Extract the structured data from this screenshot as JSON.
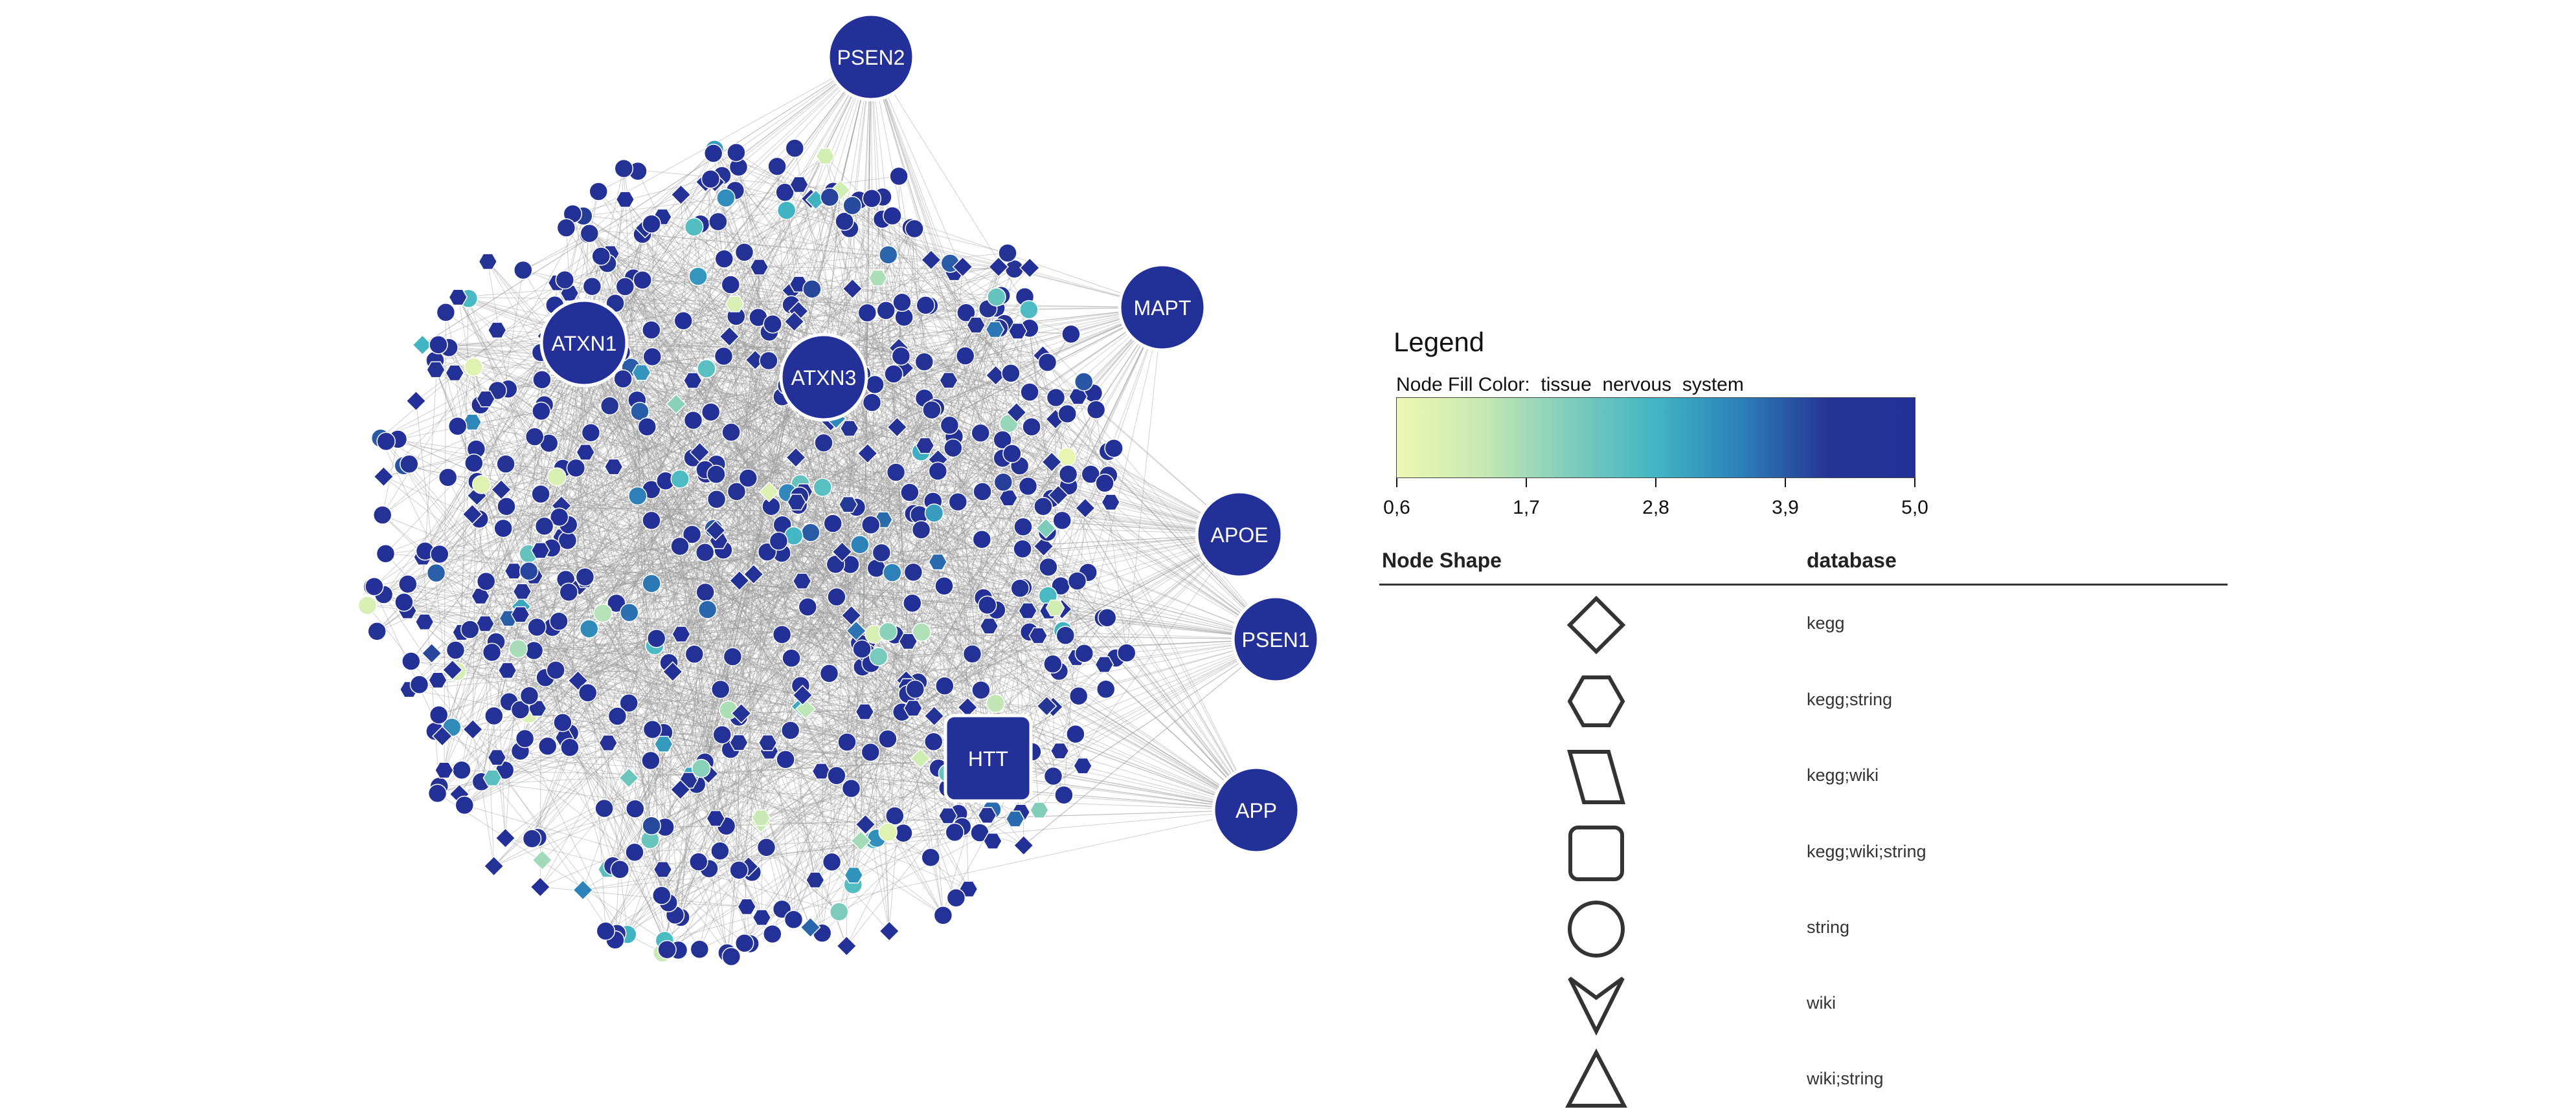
{
  "network": {
    "hubs": [
      {
        "label": "PSEN2",
        "shape": "circle",
        "value": 5.0
      },
      {
        "label": "MAPT",
        "shape": "circle",
        "value": 5.0
      },
      {
        "label": "ATXN1",
        "shape": "circle",
        "value": 5.0
      },
      {
        "label": "ATXN3",
        "shape": "circle",
        "value": 5.0
      },
      {
        "label": "APOE",
        "shape": "circle",
        "value": 5.0
      },
      {
        "label": "PSEN1",
        "shape": "circle",
        "value": 5.0
      },
      {
        "label": "HTT",
        "shape": "square",
        "value": 5.0
      },
      {
        "label": "APP",
        "shape": "circle",
        "value": 5.0
      }
    ]
  },
  "legend": {
    "title": "Legend",
    "fill_color_label": "Node Fill Color:  tissue  nervous  system",
    "gradient_colors": [
      "#edf8b1",
      "#c7e9b4",
      "#7fcdbb",
      "#41b6c4",
      "#2c7fb8",
      "#253494",
      "#233097"
    ],
    "ticks": [
      "0,6",
      "1,7",
      "2,8",
      "3,9",
      "5,0"
    ],
    "shape_header": "Node Shape",
    "database_header": "database",
    "shapes": [
      {
        "icon": "diamond-icon",
        "database": "kegg"
      },
      {
        "icon": "hexagon-icon",
        "database": "kegg;string"
      },
      {
        "icon": "parallelogram-icon",
        "database": "kegg;wiki"
      },
      {
        "icon": "rounded-square-icon",
        "database": "kegg;wiki;string"
      },
      {
        "icon": "circle-icon",
        "database": "string"
      },
      {
        "icon": "v-arrow-icon",
        "database": "wiki"
      },
      {
        "icon": "triangle-icon",
        "database": "wiki;string"
      }
    ]
  }
}
